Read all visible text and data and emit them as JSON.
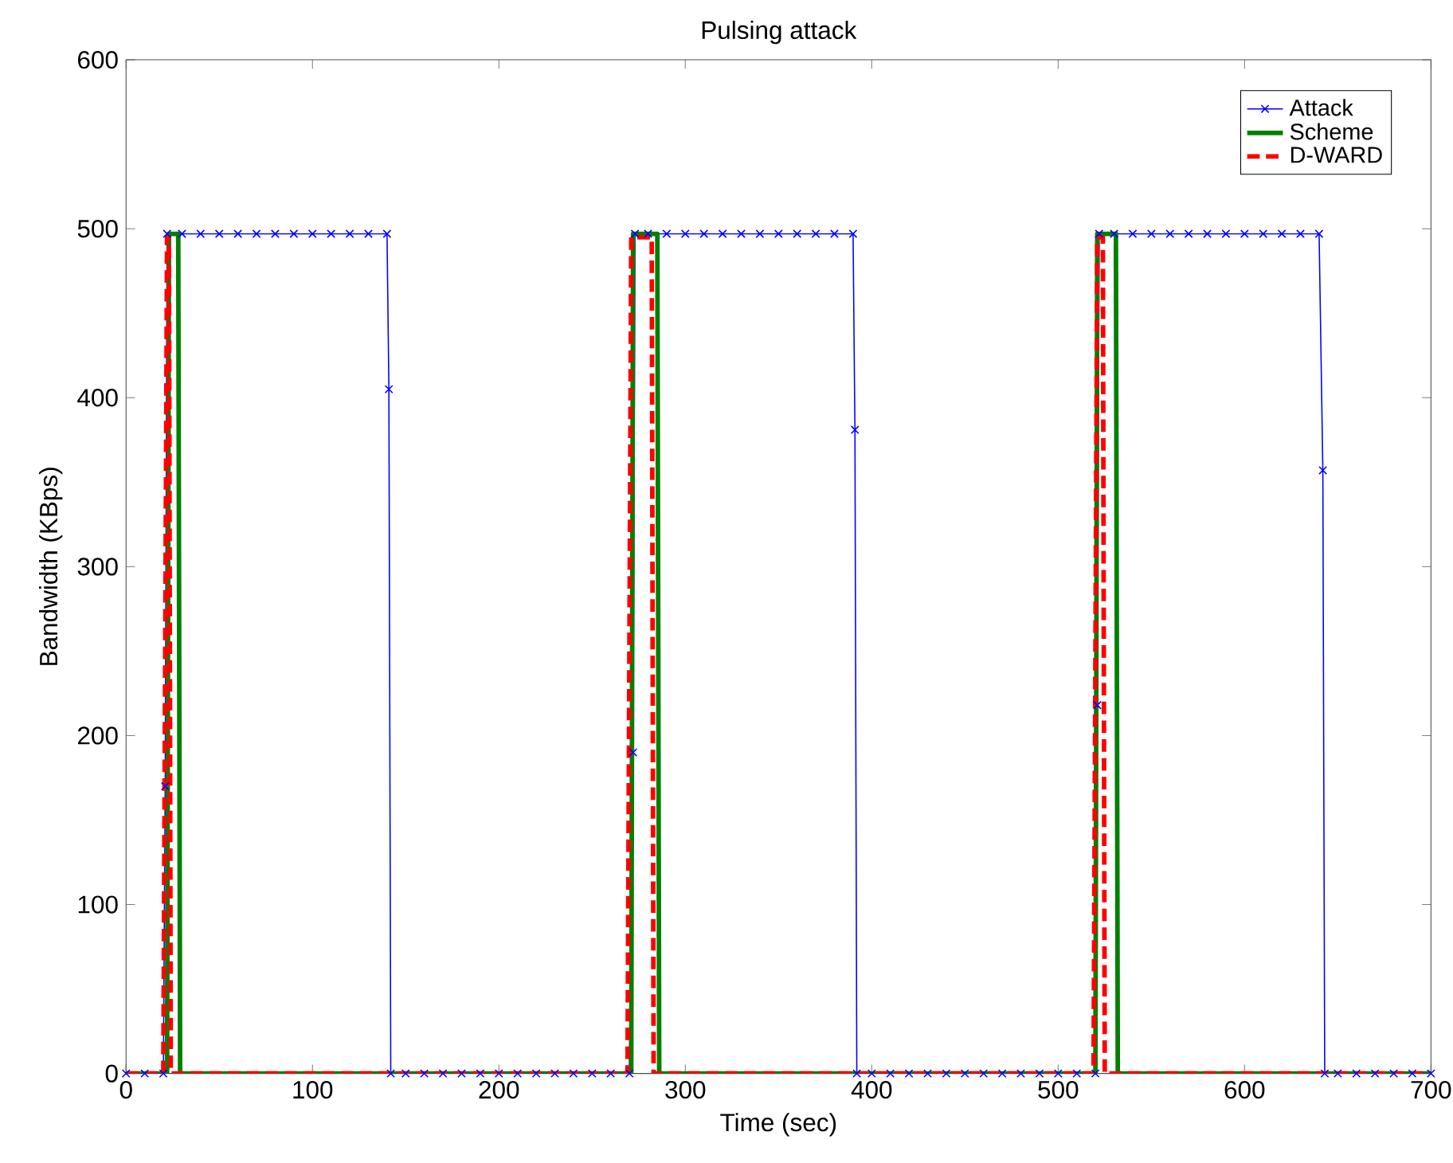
{
  "chart_data": {
    "type": "line",
    "title": "Pulsing attack",
    "xlabel": "Time (sec)",
    "ylabel": "Bandwidth (KBps)",
    "xlim": [
      0,
      700
    ],
    "ylim": [
      0,
      600
    ],
    "xticks": [
      0,
      100,
      200,
      300,
      400,
      500,
      600,
      700
    ],
    "yticks": [
      0,
      100,
      200,
      300,
      400,
      500,
      600
    ],
    "legend": "top right",
    "series": [
      {
        "name": "Attack",
        "color": "#0000ff",
        "marker": "cross",
        "line_style": "solid",
        "x": [
          0,
          10,
          20,
          21,
          22,
          30,
          40,
          50,
          60,
          70,
          80,
          90,
          100,
          110,
          120,
          130,
          140,
          141,
          142,
          150,
          160,
          170,
          180,
          190,
          200,
          210,
          220,
          230,
          240,
          250,
          260,
          270,
          272,
          273,
          280,
          290,
          300,
          310,
          320,
          330,
          340,
          350,
          360,
          370,
          380,
          390,
          391,
          392,
          400,
          410,
          420,
          430,
          440,
          450,
          460,
          470,
          480,
          490,
          500,
          510,
          520,
          521,
          522,
          530,
          540,
          550,
          560,
          570,
          580,
          590,
          600,
          610,
          620,
          630,
          640,
          642,
          643,
          650,
          660,
          670,
          680,
          690,
          700
        ],
        "values": [
          0,
          0,
          0,
          170,
          497,
          497,
          497,
          497,
          497,
          497,
          497,
          497,
          497,
          497,
          497,
          497,
          497,
          405,
          0,
          0,
          0,
          0,
          0,
          0,
          0,
          0,
          0,
          0,
          0,
          0,
          0,
          0,
          190,
          497,
          497,
          497,
          497,
          497,
          497,
          497,
          497,
          497,
          497,
          497,
          497,
          497,
          381,
          0,
          0,
          0,
          0,
          0,
          0,
          0,
          0,
          0,
          0,
          0,
          0,
          0,
          0,
          218,
          497,
          497,
          497,
          497,
          497,
          497,
          497,
          497,
          497,
          497,
          497,
          497,
          497,
          357,
          0,
          0,
          0,
          0,
          0,
          0,
          0
        ]
      },
      {
        "name": "Scheme",
        "color": "#008000",
        "marker": "none",
        "line_style": "solid",
        "x": [
          0,
          22,
          23,
          28,
          29,
          271,
          272,
          285,
          286,
          520,
          521,
          531,
          532,
          700
        ],
        "values": [
          0,
          0,
          497,
          497,
          0,
          0,
          497,
          497,
          0,
          0,
          497,
          497,
          0,
          0
        ]
      },
      {
        "name": "D-WARD",
        "color": "#ff0000",
        "marker": "none",
        "line_style": "dashed",
        "x": [
          0,
          20,
          22,
          23,
          24,
          269,
          271,
          282,
          283,
          519,
          521,
          524,
          525,
          700
        ],
        "values": [
          0,
          0,
          495,
          495,
          0,
          0,
          495,
          495,
          0,
          0,
          495,
          495,
          0,
          0
        ]
      }
    ]
  }
}
